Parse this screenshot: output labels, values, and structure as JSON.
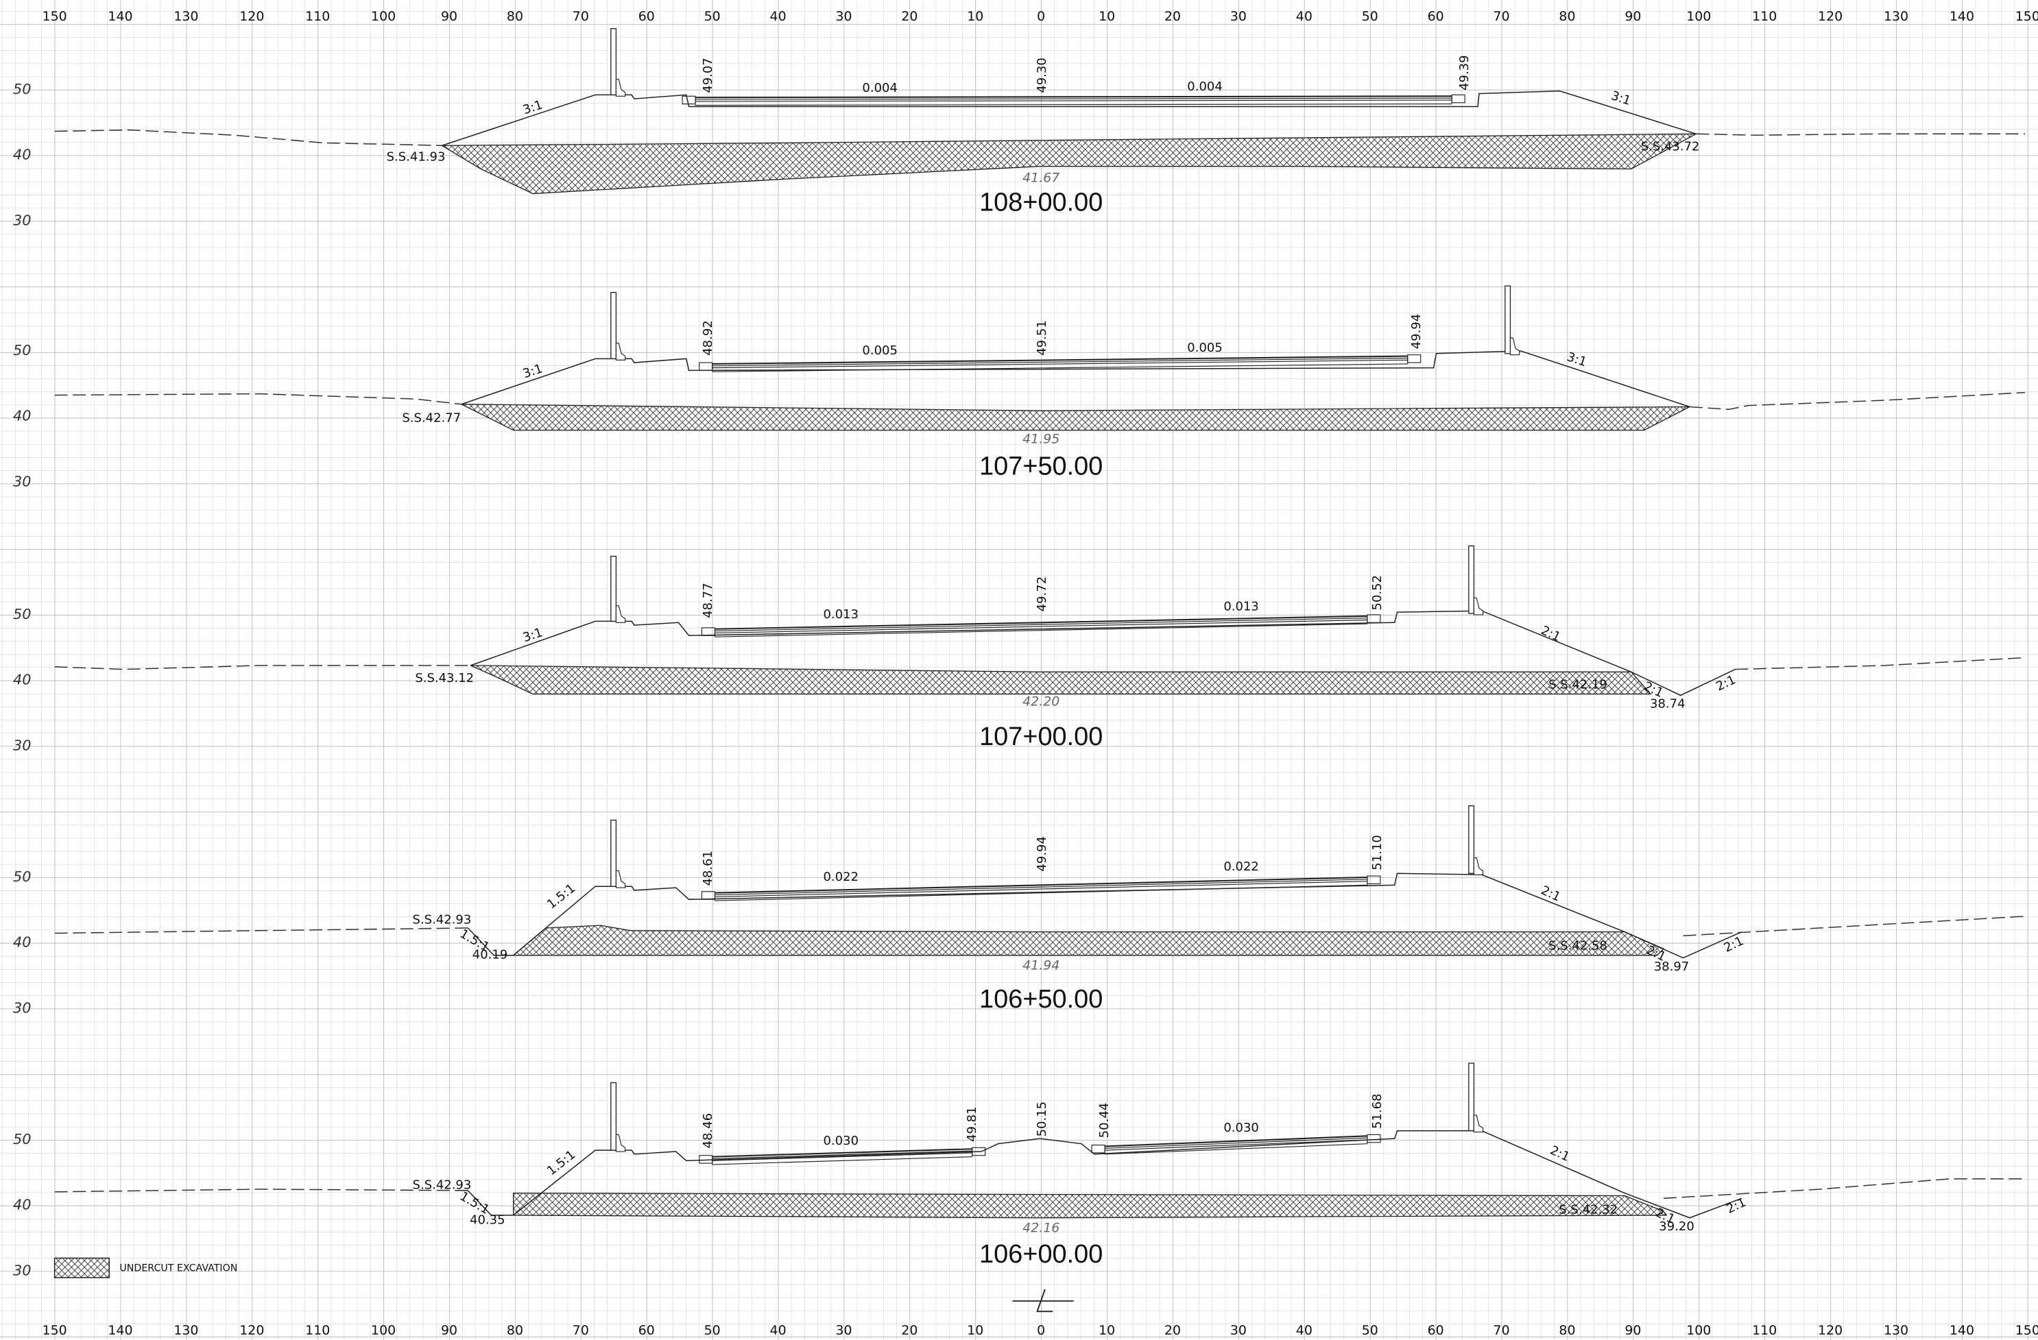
{
  "offset_labels": [
    150,
    140,
    130,
    120,
    110,
    100,
    90,
    80,
    70,
    60,
    50,
    40,
    30,
    20,
    10,
    0,
    10,
    20,
    30,
    40,
    50,
    60,
    70,
    80,
    90,
    100,
    110,
    120,
    130,
    140,
    150
  ],
  "sections": [
    {
      "station": "108+00.00",
      "elevation_labels": [
        50,
        40,
        30
      ],
      "annotations": [
        "3:1",
        "49.07",
        "0.004",
        "49.30",
        "0.004",
        "49.39",
        "3:1",
        "S.S.41.93",
        "S.S.43.72",
        "41.67"
      ]
    },
    {
      "station": "107+50.00",
      "elevation_labels": [
        50,
        40,
        30
      ],
      "annotations": [
        "3:1",
        "48.92",
        "0.005",
        "49.51",
        "0.005",
        "49.94",
        "3:1",
        "S.S.42.77",
        "41.95"
      ]
    },
    {
      "station": "107+00.00",
      "elevation_labels": [
        50,
        40,
        30
      ],
      "annotations": [
        "3:1",
        "48.77",
        "0.013",
        "49.72",
        "0.013",
        "50.52",
        "2:1",
        "S.S.43.12",
        "S.S.42.19",
        "2:1",
        "38.74",
        "2:1",
        "42.20"
      ]
    },
    {
      "station": "106+50.00",
      "elevation_labels": [
        50,
        40,
        30
      ],
      "annotations": [
        "1.5:1",
        "48.61",
        "0.022",
        "49.94",
        "0.022",
        "51.10",
        "2:1",
        "S.S.42.93",
        "1.5:1",
        "40.19",
        "S.S.42.58",
        "2:1",
        "38.97",
        "2:1",
        "41.94"
      ]
    },
    {
      "station": "106+00.00",
      "elevation_labels": [
        50,
        40,
        30
      ],
      "annotations": [
        "1.5:1",
        "48.46",
        "0.030",
        "49.81",
        "50.15",
        "50.44",
        "0.030",
        "51.68",
        "2:1",
        "S.S.42.93",
        "1.5:1",
        "40.35",
        "S.S.42.32",
        "2:1",
        "39.20",
        "2:1",
        "42.16"
      ]
    }
  ],
  "legend": {
    "label": "UNDERCUT EXCAVATION"
  }
}
